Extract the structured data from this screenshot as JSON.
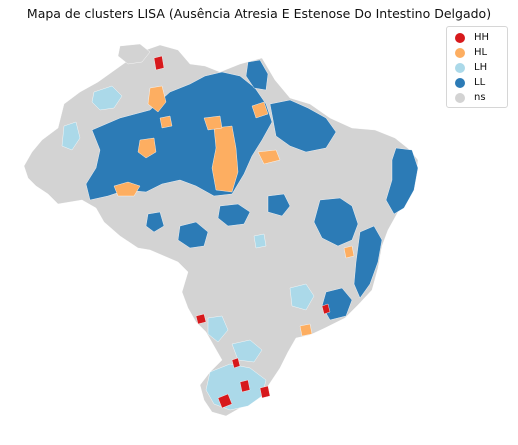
{
  "title": "Mapa de clusters LISA (Ausência Atresia E Estenose Do Intestino Delgado)",
  "legend": {
    "items": [
      {
        "label": "HH",
        "color": "#d7191c"
      },
      {
        "label": "HL",
        "color": "#fdae61"
      },
      {
        "label": "LH",
        "color": "#abd9e9"
      },
      {
        "label": "LL",
        "color": "#2c7bb6"
      },
      {
        "label": "ns",
        "color": "#d3d3d3"
      }
    ]
  },
  "colors": {
    "background": "#ffffff",
    "ns": "#d3d3d3",
    "borders": "#ffffff"
  }
}
